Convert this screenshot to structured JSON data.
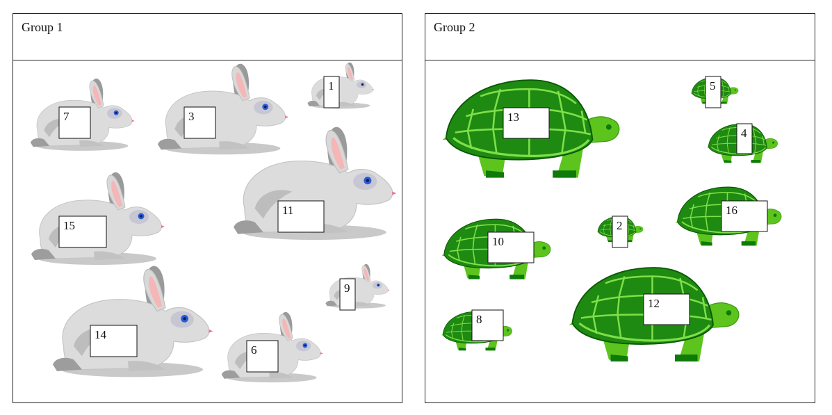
{
  "groups": [
    {
      "title": "Group 1",
      "animal": "rabbit",
      "items": [
        {
          "label": "7",
          "scale": 0.78
        },
        {
          "label": "3",
          "scale": 0.98
        },
        {
          "label": "1",
          "scale": 0.5
        },
        {
          "label": "15",
          "scale": 1.0
        },
        {
          "label": "11",
          "scale": 1.22
        },
        {
          "label": "9",
          "scale": 0.48
        },
        {
          "label": "14",
          "scale": 1.2
        },
        {
          "label": "6",
          "scale": 0.76
        }
      ]
    },
    {
      "title": "Group 2",
      "animal": "turtle",
      "items": [
        {
          "label": "13",
          "scale": 1.3
        },
        {
          "label": "5",
          "scale": 0.35
        },
        {
          "label": "4",
          "scale": 0.52
        },
        {
          "label": "10",
          "scale": 0.8
        },
        {
          "label": "2",
          "scale": 0.34
        },
        {
          "label": "16",
          "scale": 0.78
        },
        {
          "label": "8",
          "scale": 0.52
        },
        {
          "label": "12",
          "scale": 1.25
        }
      ]
    }
  ],
  "colors": {
    "rabbit_body": "#dcdcdc",
    "rabbit_shadow": "#a9a9a9",
    "rabbit_ear_inner": "#f4b6b6",
    "rabbit_eye": "#2a5bd6",
    "turtle_shell": "#1f8a12",
    "turtle_shell_dark": "#0b6a05",
    "turtle_lines": "#7ee048",
    "turtle_skin": "#5cc41d",
    "turtle_skin_dark": "#0e7a08"
  }
}
